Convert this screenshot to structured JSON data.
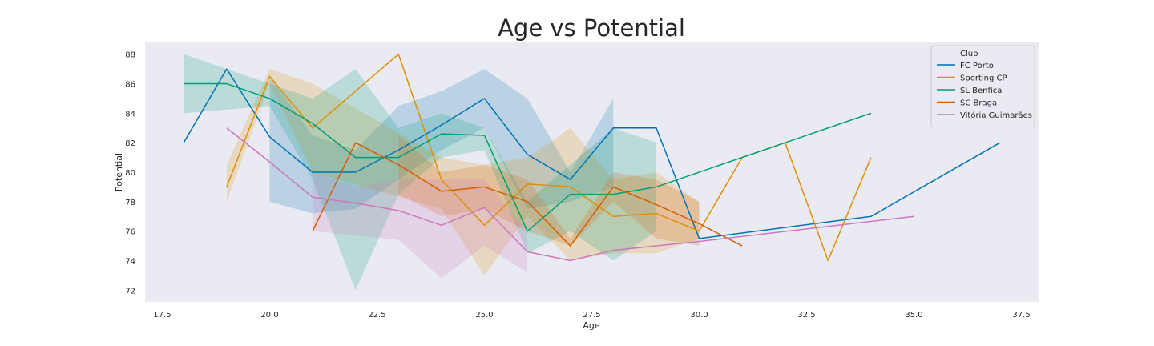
{
  "chart_data": {
    "type": "line",
    "title": "Age vs Potential",
    "xlabel": "Age",
    "ylabel": "Potential",
    "xlim": [
      17.1,
      37.9
    ],
    "ylim": [
      71.2,
      88.8
    ],
    "x_ticks": [
      17.5,
      20.0,
      22.5,
      25.0,
      27.5,
      30.0,
      32.5,
      35.0,
      37.5
    ],
    "x_tick_labels": [
      "17.5",
      "20.0",
      "22.5",
      "25.0",
      "27.5",
      "30.0",
      "32.5",
      "35.0",
      "37.5"
    ],
    "y_ticks": [
      72,
      74,
      76,
      78,
      80,
      82,
      84,
      86,
      88
    ],
    "y_tick_labels": [
      "72",
      "74",
      "76",
      "78",
      "80",
      "82",
      "84",
      "86",
      "88"
    ],
    "grid": false,
    "legend": {
      "title": "Club",
      "position": "top-right"
    },
    "background_color": "#eaeaf2",
    "series": [
      {
        "name": "FC Porto",
        "color": "#0173b2",
        "x": [
          18,
          19,
          20,
          21,
          22,
          23,
          24,
          25,
          26,
          27,
          28,
          29,
          30,
          34,
          37
        ],
        "y": [
          82,
          87,
          82.4,
          80,
          80,
          81.5,
          83.2,
          85,
          81.2,
          79.5,
          83,
          83,
          75.5,
          77,
          82
        ],
        "ci_x": [
          20,
          21,
          22,
          23,
          24,
          25,
          26,
          27,
          28
        ],
        "ci_low": [
          78,
          77.2,
          77.5,
          79.5,
          81.5,
          83,
          77.5,
          78,
          79
        ],
        "ci_high": [
          86.5,
          82.5,
          81.5,
          84.5,
          85.5,
          87,
          85,
          80,
          85
        ]
      },
      {
        "name": "Sporting CP",
        "color": "#de8f05",
        "x": [
          19,
          20,
          21,
          23,
          24,
          25,
          26,
          27,
          28,
          29,
          30,
          31,
          32,
          33,
          34
        ],
        "y": [
          79,
          86.5,
          83,
          88,
          79.5,
          76.4,
          79.2,
          79,
          77,
          77.2,
          76,
          81,
          82,
          74,
          81
        ],
        "ci_x": [
          19,
          20,
          21,
          24,
          25,
          26,
          27,
          28,
          29,
          30
        ],
        "ci_low": [
          78,
          86,
          80,
          77.5,
          73,
          77,
          74,
          74.5,
          74.5,
          75.5
        ],
        "ci_high": [
          80.5,
          87,
          86,
          81,
          80.5,
          81,
          83,
          79.5,
          80,
          78
        ]
      },
      {
        "name": "SL Benfica",
        "color": "#029e73",
        "x": [
          18,
          19,
          20,
          21,
          22,
          23,
          24,
          25,
          26,
          27,
          28,
          29,
          34
        ],
        "y": [
          86,
          86,
          85,
          83.3,
          81,
          81,
          82.6,
          82.5,
          76,
          78.5,
          78.5,
          79,
          84
        ],
        "ci_x": [
          18,
          20,
          21,
          22,
          23,
          24,
          25,
          26,
          27,
          28,
          29
        ],
        "ci_low": [
          84,
          84.5,
          79.5,
          72,
          78.5,
          81,
          81.5,
          74.5,
          76,
          74,
          76
        ],
        "ci_high": [
          88,
          86,
          85,
          87,
          83,
          84,
          83,
          78,
          80.5,
          83,
          82
        ]
      },
      {
        "name": "SC Braga",
        "color": "#d55e00",
        "x": [
          21,
          22,
          23,
          24,
          25,
          26,
          27,
          28,
          29,
          30,
          31
        ],
        "y": [
          76,
          82,
          80.5,
          78.7,
          79,
          78,
          75,
          79,
          77.8,
          76.5,
          75
        ],
        "ci_x": [
          23,
          24,
          25,
          26,
          27,
          28,
          29,
          30
        ],
        "ci_low": [
          78.5,
          77,
          77.5,
          76,
          75,
          78,
          75.5,
          75
        ],
        "ci_high": [
          82.5,
          80,
          80.5,
          79.5,
          75.5,
          80,
          79.5,
          78
        ]
      },
      {
        "name": "Vitória Guimarães",
        "color": "#cc78bc",
        "x": [
          19,
          20,
          21,
          22,
          23,
          24,
          25,
          26,
          27,
          28,
          29,
          30,
          35
        ],
        "y": [
          83,
          80.7,
          78.3,
          77.9,
          77.4,
          76.4,
          77.6,
          74.6,
          74,
          74.7,
          75,
          75.3,
          77
        ],
        "ci_x": [
          21,
          22,
          23,
          24,
          25,
          26
        ],
        "ci_low": [
          76,
          75.7,
          75.4,
          72.8,
          75,
          73.2
        ],
        "ci_high": [
          80,
          79,
          79.5,
          79.5,
          79.5,
          76
        ]
      }
    ]
  }
}
